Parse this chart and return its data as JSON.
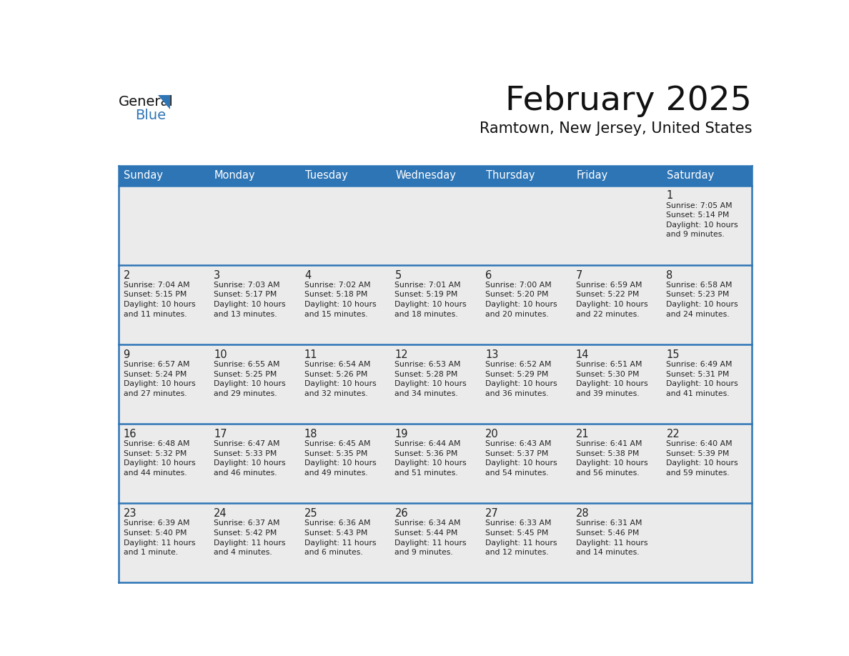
{
  "title": "February 2025",
  "subtitle": "Ramtown, New Jersey, United States",
  "header_bg_color": "#2E75B6",
  "header_text_color": "#FFFFFF",
  "cell_bg_color": "#EBEBEB",
  "day_number_color": "#2E75B6",
  "text_color": "#222222",
  "border_color": "#2E75B6",
  "row_separator_color": "#2E75B6",
  "days_of_week": [
    "Sunday",
    "Monday",
    "Tuesday",
    "Wednesday",
    "Thursday",
    "Friday",
    "Saturday"
  ],
  "weeks": [
    [
      {
        "day": null,
        "info": null
      },
      {
        "day": null,
        "info": null
      },
      {
        "day": null,
        "info": null
      },
      {
        "day": null,
        "info": null
      },
      {
        "day": null,
        "info": null
      },
      {
        "day": null,
        "info": null
      },
      {
        "day": 1,
        "info": "Sunrise: 7:05 AM\nSunset: 5:14 PM\nDaylight: 10 hours\nand 9 minutes."
      }
    ],
    [
      {
        "day": 2,
        "info": "Sunrise: 7:04 AM\nSunset: 5:15 PM\nDaylight: 10 hours\nand 11 minutes."
      },
      {
        "day": 3,
        "info": "Sunrise: 7:03 AM\nSunset: 5:17 PM\nDaylight: 10 hours\nand 13 minutes."
      },
      {
        "day": 4,
        "info": "Sunrise: 7:02 AM\nSunset: 5:18 PM\nDaylight: 10 hours\nand 15 minutes."
      },
      {
        "day": 5,
        "info": "Sunrise: 7:01 AM\nSunset: 5:19 PM\nDaylight: 10 hours\nand 18 minutes."
      },
      {
        "day": 6,
        "info": "Sunrise: 7:00 AM\nSunset: 5:20 PM\nDaylight: 10 hours\nand 20 minutes."
      },
      {
        "day": 7,
        "info": "Sunrise: 6:59 AM\nSunset: 5:22 PM\nDaylight: 10 hours\nand 22 minutes."
      },
      {
        "day": 8,
        "info": "Sunrise: 6:58 AM\nSunset: 5:23 PM\nDaylight: 10 hours\nand 24 minutes."
      }
    ],
    [
      {
        "day": 9,
        "info": "Sunrise: 6:57 AM\nSunset: 5:24 PM\nDaylight: 10 hours\nand 27 minutes."
      },
      {
        "day": 10,
        "info": "Sunrise: 6:55 AM\nSunset: 5:25 PM\nDaylight: 10 hours\nand 29 minutes."
      },
      {
        "day": 11,
        "info": "Sunrise: 6:54 AM\nSunset: 5:26 PM\nDaylight: 10 hours\nand 32 minutes."
      },
      {
        "day": 12,
        "info": "Sunrise: 6:53 AM\nSunset: 5:28 PM\nDaylight: 10 hours\nand 34 minutes."
      },
      {
        "day": 13,
        "info": "Sunrise: 6:52 AM\nSunset: 5:29 PM\nDaylight: 10 hours\nand 36 minutes."
      },
      {
        "day": 14,
        "info": "Sunrise: 6:51 AM\nSunset: 5:30 PM\nDaylight: 10 hours\nand 39 minutes."
      },
      {
        "day": 15,
        "info": "Sunrise: 6:49 AM\nSunset: 5:31 PM\nDaylight: 10 hours\nand 41 minutes."
      }
    ],
    [
      {
        "day": 16,
        "info": "Sunrise: 6:48 AM\nSunset: 5:32 PM\nDaylight: 10 hours\nand 44 minutes."
      },
      {
        "day": 17,
        "info": "Sunrise: 6:47 AM\nSunset: 5:33 PM\nDaylight: 10 hours\nand 46 minutes."
      },
      {
        "day": 18,
        "info": "Sunrise: 6:45 AM\nSunset: 5:35 PM\nDaylight: 10 hours\nand 49 minutes."
      },
      {
        "day": 19,
        "info": "Sunrise: 6:44 AM\nSunset: 5:36 PM\nDaylight: 10 hours\nand 51 minutes."
      },
      {
        "day": 20,
        "info": "Sunrise: 6:43 AM\nSunset: 5:37 PM\nDaylight: 10 hours\nand 54 minutes."
      },
      {
        "day": 21,
        "info": "Sunrise: 6:41 AM\nSunset: 5:38 PM\nDaylight: 10 hours\nand 56 minutes."
      },
      {
        "day": 22,
        "info": "Sunrise: 6:40 AM\nSunset: 5:39 PM\nDaylight: 10 hours\nand 59 minutes."
      }
    ],
    [
      {
        "day": 23,
        "info": "Sunrise: 6:39 AM\nSunset: 5:40 PM\nDaylight: 11 hours\nand 1 minute."
      },
      {
        "day": 24,
        "info": "Sunrise: 6:37 AM\nSunset: 5:42 PM\nDaylight: 11 hours\nand 4 minutes."
      },
      {
        "day": 25,
        "info": "Sunrise: 6:36 AM\nSunset: 5:43 PM\nDaylight: 11 hours\nand 6 minutes."
      },
      {
        "day": 26,
        "info": "Sunrise: 6:34 AM\nSunset: 5:44 PM\nDaylight: 11 hours\nand 9 minutes."
      },
      {
        "day": 27,
        "info": "Sunrise: 6:33 AM\nSunset: 5:45 PM\nDaylight: 11 hours\nand 12 minutes."
      },
      {
        "day": 28,
        "info": "Sunrise: 6:31 AM\nSunset: 5:46 PM\nDaylight: 11 hours\nand 14 minutes."
      },
      {
        "day": null,
        "info": null
      }
    ]
  ]
}
